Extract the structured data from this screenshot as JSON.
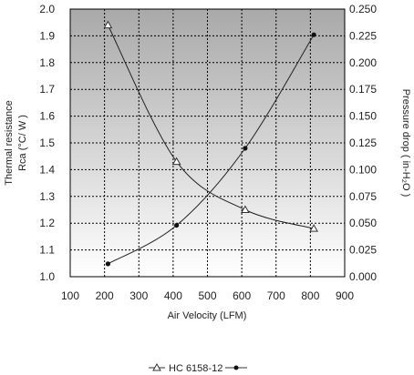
{
  "chart_data": {
    "type": "line",
    "x": [
      210,
      410,
      610,
      810
    ],
    "xlabel": "Air Velocity (LFM)",
    "xlim": [
      100,
      900
    ],
    "xticks": [
      100,
      200,
      300,
      400,
      500,
      600,
      700,
      800,
      900
    ],
    "ylabel_left_line1": "Thermal resistance",
    "ylabel_left_line2": "Rca (°C/ W )",
    "ylabel_right": "Pressure drop  ( in-H₂O )",
    "ylim_left": [
      1.0,
      2.0
    ],
    "yticks_left": [
      "1.0",
      "1.1",
      "1.2",
      "1.3",
      "1.4",
      "1.5",
      "1.6",
      "1.7",
      "1.8",
      "1.9",
      "2.0"
    ],
    "ylim_right": [
      0,
      0.25
    ],
    "yticks_right": [
      "0.000",
      "0.025",
      "0.050",
      "0.075",
      "0.100",
      "0.125",
      "0.150",
      "0.175",
      "0.200",
      "0.225",
      "0.250"
    ],
    "grid": true,
    "background": "gray gradient",
    "series": [
      {
        "axis": "left",
        "marker": "triangle",
        "values": [
          1.94,
          1.43,
          1.25,
          1.18
        ]
      },
      {
        "axis": "right",
        "marker": "circle",
        "values": [
          0.012,
          0.048,
          0.12,
          0.226
        ]
      }
    ],
    "legend": {
      "label": "HC 6158-12",
      "placement": "bottom-center"
    }
  }
}
